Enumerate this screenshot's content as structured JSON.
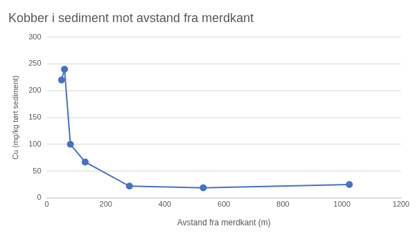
{
  "chart_data": {
    "type": "line",
    "title": "Kobber i sediment mot avstand fra merdkant",
    "x_label": "Avstand fra merdkant (m)",
    "y_label": "Cu (mg/kg tørt sediment)",
    "x": [
      50,
      60,
      80,
      130,
      280,
      530,
      1025
    ],
    "values": [
      220,
      240,
      100,
      67,
      22,
      19,
      25
    ],
    "color": "#4472c4",
    "marker": "circle",
    "line_style": "solid",
    "xlim": [
      0,
      1200
    ],
    "xticks": [
      0,
      200,
      400,
      600,
      800,
      1000,
      1200
    ],
    "ylim": [
      0,
      300
    ],
    "yticks": [
      0,
      50,
      100,
      150,
      200,
      250,
      300
    ],
    "grid": "y"
  }
}
